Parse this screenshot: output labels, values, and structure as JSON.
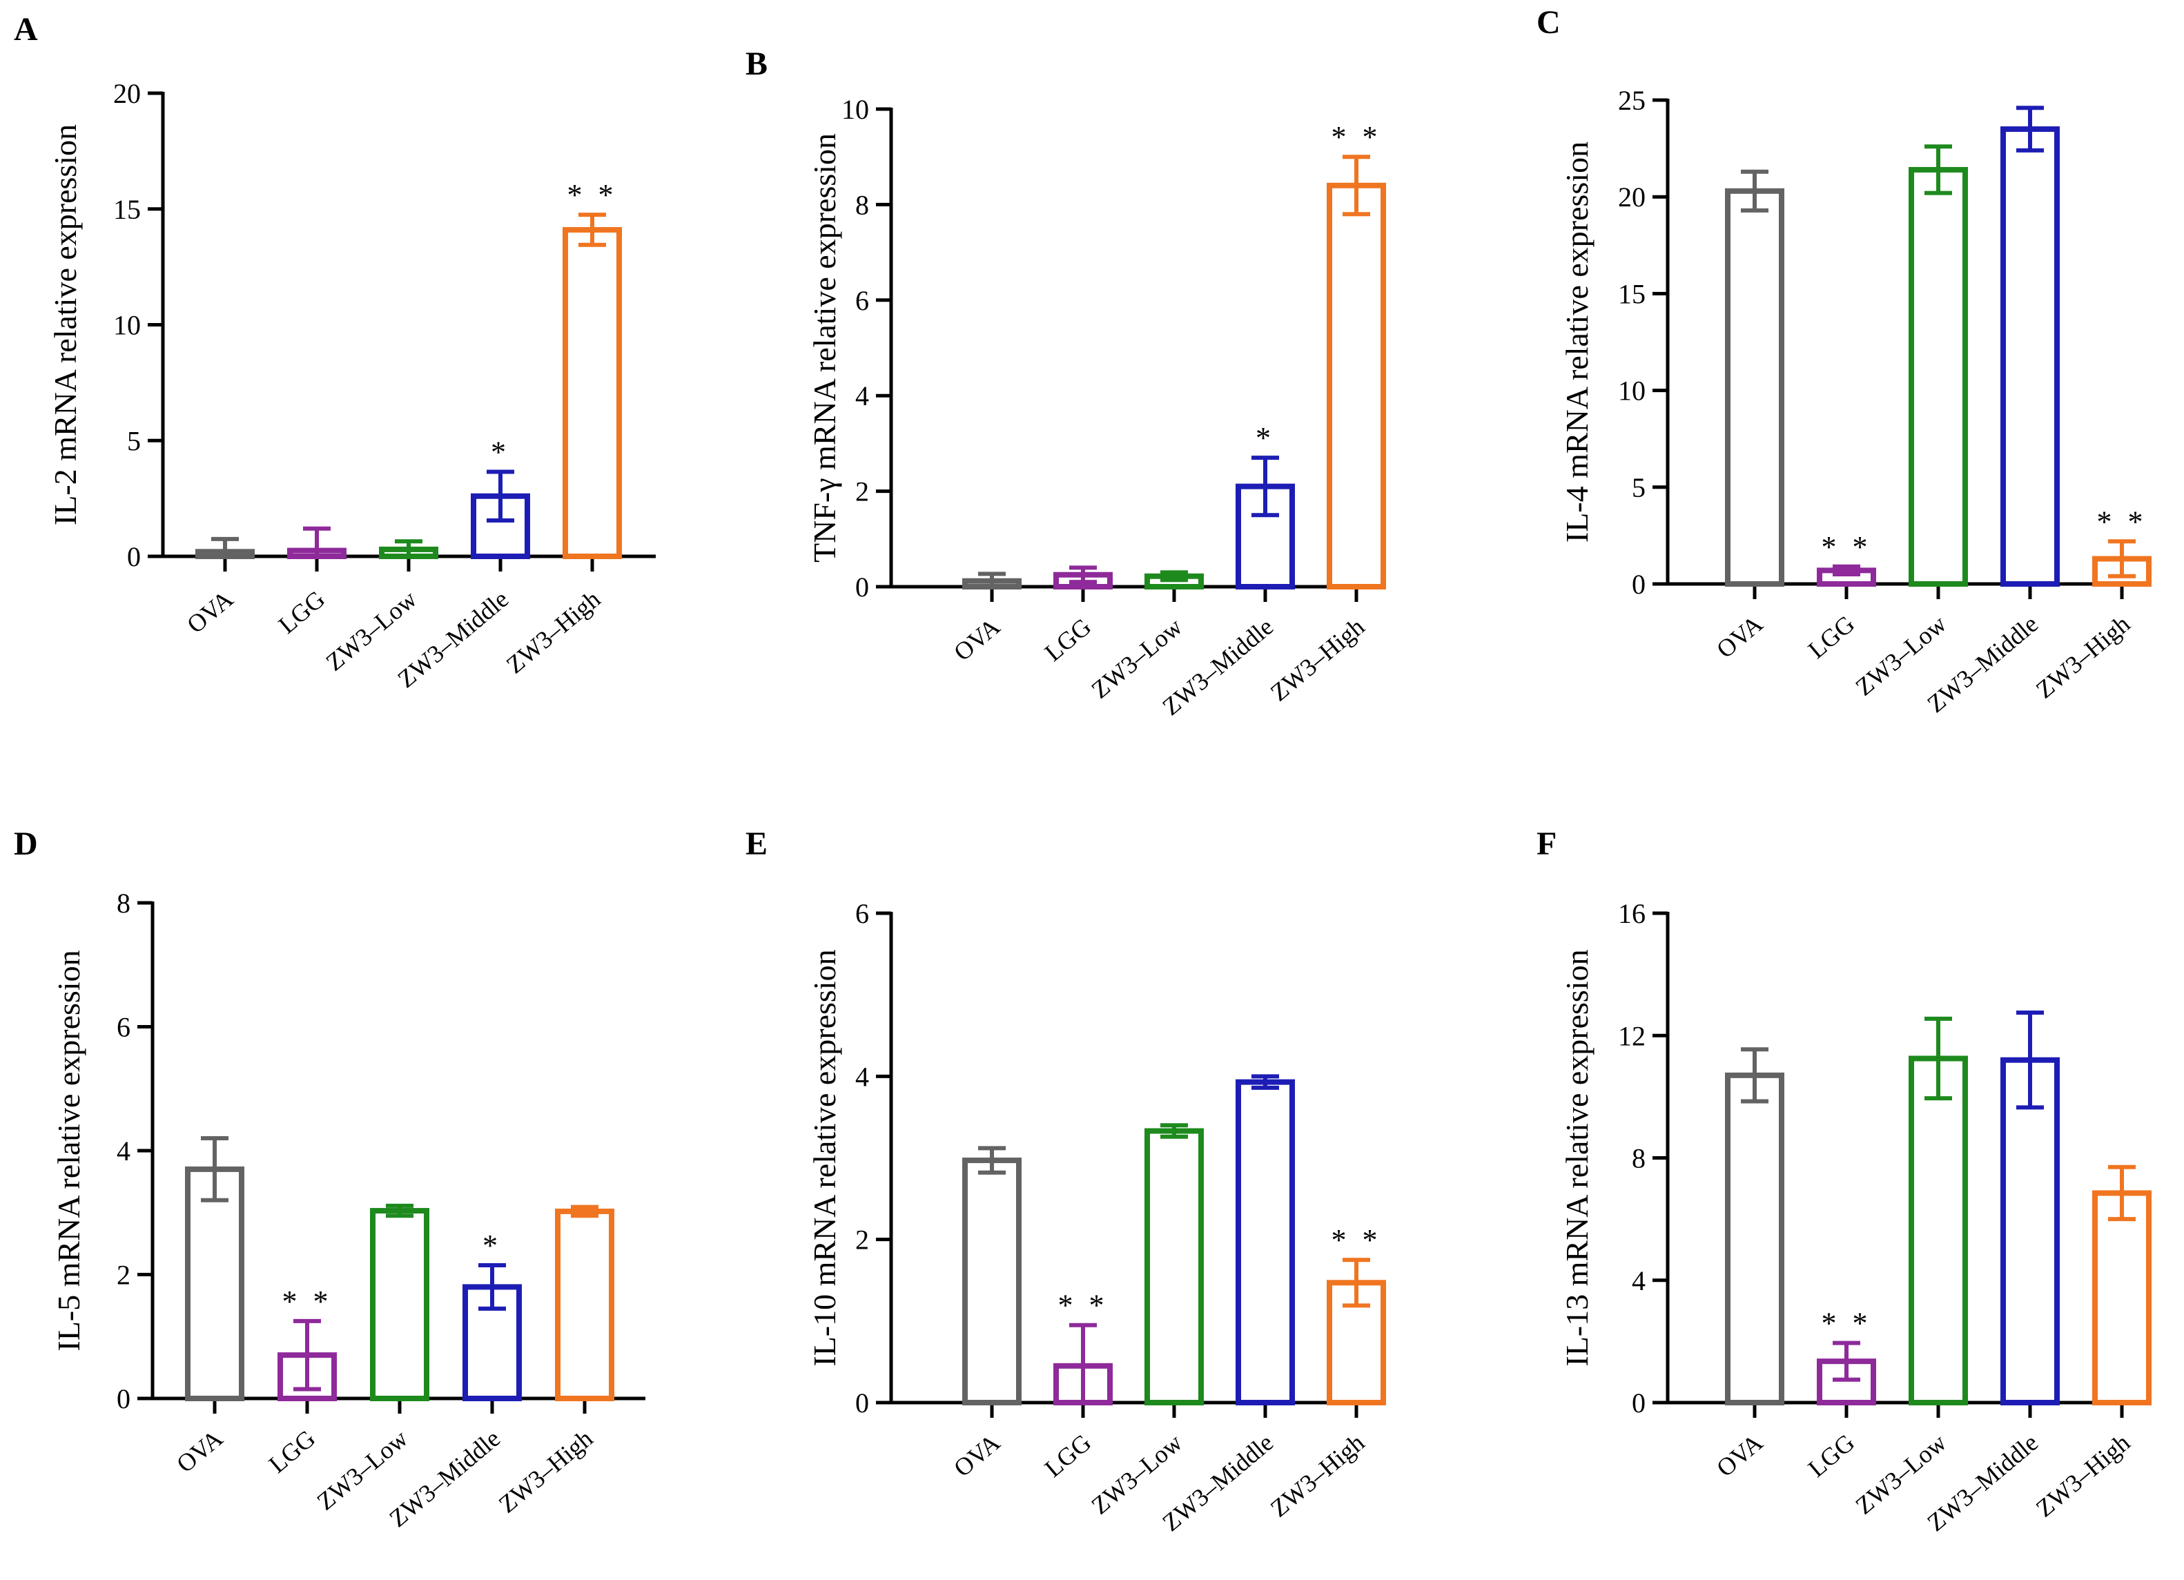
{
  "chart_data": [
    {
      "panel": "A",
      "type": "bar",
      "ylabel": "IL-2 mRNA relative expression",
      "ylim": [
        0,
        20
      ],
      "yticks": [
        0,
        5,
        10,
        15,
        20
      ],
      "categories": [
        "OVA",
        "LGG",
        "ZW3–Low",
        "ZW3–Middle",
        "ZW3–High"
      ],
      "values": [
        0.2,
        0.25,
        0.3,
        2.6,
        14.1
      ],
      "errors": [
        0.55,
        0.95,
        0.35,
        1.05,
        0.65
      ],
      "significance": [
        "",
        "",
        "",
        "*",
        "**"
      ],
      "colors": [
        "#636363",
        "#8e2a9a",
        "#1e8a1e",
        "#1d1db5",
        "#f07520"
      ]
    },
    {
      "panel": "B",
      "type": "bar",
      "ylabel": "TNF-γ mRNA relative expression",
      "ylim": [
        0,
        10
      ],
      "yticks": [
        0,
        2,
        4,
        6,
        8,
        10
      ],
      "categories": [
        "OVA",
        "LGG",
        "ZW3–Low",
        "ZW3–Middle",
        "ZW3–High"
      ],
      "values": [
        0.12,
        0.25,
        0.22,
        2.1,
        8.4
      ],
      "errors": [
        0.15,
        0.15,
        0.08,
        0.6,
        0.6
      ],
      "significance": [
        "",
        "",
        "",
        "*",
        "**"
      ],
      "colors": [
        "#636363",
        "#8e2a9a",
        "#1e8a1e",
        "#1d1db5",
        "#f07520"
      ]
    },
    {
      "panel": "C",
      "type": "bar",
      "ylabel": "IL-4 mRNA relative expression",
      "ylim": [
        0,
        25
      ],
      "yticks": [
        0,
        5,
        10,
        15,
        20,
        25
      ],
      "categories": [
        "OVA",
        "LGG",
        "ZW3–Low",
        "ZW3–Middle",
        "ZW3–High"
      ],
      "values": [
        20.3,
        0.7,
        21.4,
        23.5,
        1.3
      ],
      "errors": [
        1.0,
        0.2,
        1.2,
        1.1,
        0.9
      ],
      "significance": [
        "",
        "**",
        "",
        "",
        "**"
      ],
      "colors": [
        "#636363",
        "#8e2a9a",
        "#1e8a1e",
        "#1d1db5",
        "#f07520"
      ]
    },
    {
      "panel": "D",
      "type": "bar",
      "ylabel": "IL-5 mRNA relative expression",
      "ylim": [
        0,
        8
      ],
      "yticks": [
        0,
        2,
        4,
        6,
        8
      ],
      "categories": [
        "OVA",
        "LGG",
        "ZW3–Low",
        "ZW3–Middle",
        "ZW3–High"
      ],
      "values": [
        3.7,
        0.7,
        3.03,
        1.8,
        3.02
      ],
      "errors": [
        0.5,
        0.55,
        0.08,
        0.35,
        0.07
      ],
      "significance": [
        "",
        "**",
        "",
        "*",
        ""
      ],
      "colors": [
        "#636363",
        "#8e2a9a",
        "#1e8a1e",
        "#1d1db5",
        "#f07520"
      ]
    },
    {
      "panel": "E",
      "type": "bar",
      "ylabel": "IL-10 mRNA relative expression",
      "ylim": [
        0,
        6
      ],
      "yticks": [
        0,
        2,
        4,
        6
      ],
      "categories": [
        "OVA",
        "LGG",
        "ZW3–Low",
        "ZW3–Middle",
        "ZW3–High"
      ],
      "values": [
        2.97,
        0.45,
        3.33,
        3.93,
        1.47
      ],
      "errors": [
        0.15,
        0.5,
        0.07,
        0.07,
        0.28
      ],
      "significance": [
        "",
        "**",
        "",
        "",
        "**"
      ],
      "colors": [
        "#636363",
        "#8e2a9a",
        "#1e8a1e",
        "#1d1db5",
        "#f07520"
      ]
    },
    {
      "panel": "F",
      "type": "bar",
      "ylabel": "IL-13 mRNA relative expression",
      "ylim": [
        0,
        16
      ],
      "yticks": [
        0,
        4,
        8,
        12,
        16
      ],
      "categories": [
        "OVA",
        "LGG",
        "ZW3–Low",
        "ZW3–Middle",
        "ZW3–High"
      ],
      "values": [
        10.7,
        1.35,
        11.25,
        11.2,
        6.85
      ],
      "errors": [
        0.85,
        0.6,
        1.3,
        1.55,
        0.85
      ],
      "significance": [
        "",
        "**",
        "",
        "",
        ""
      ],
      "colors": [
        "#636363",
        "#8e2a9a",
        "#1e8a1e",
        "#1d1db5",
        "#f07520"
      ]
    }
  ]
}
